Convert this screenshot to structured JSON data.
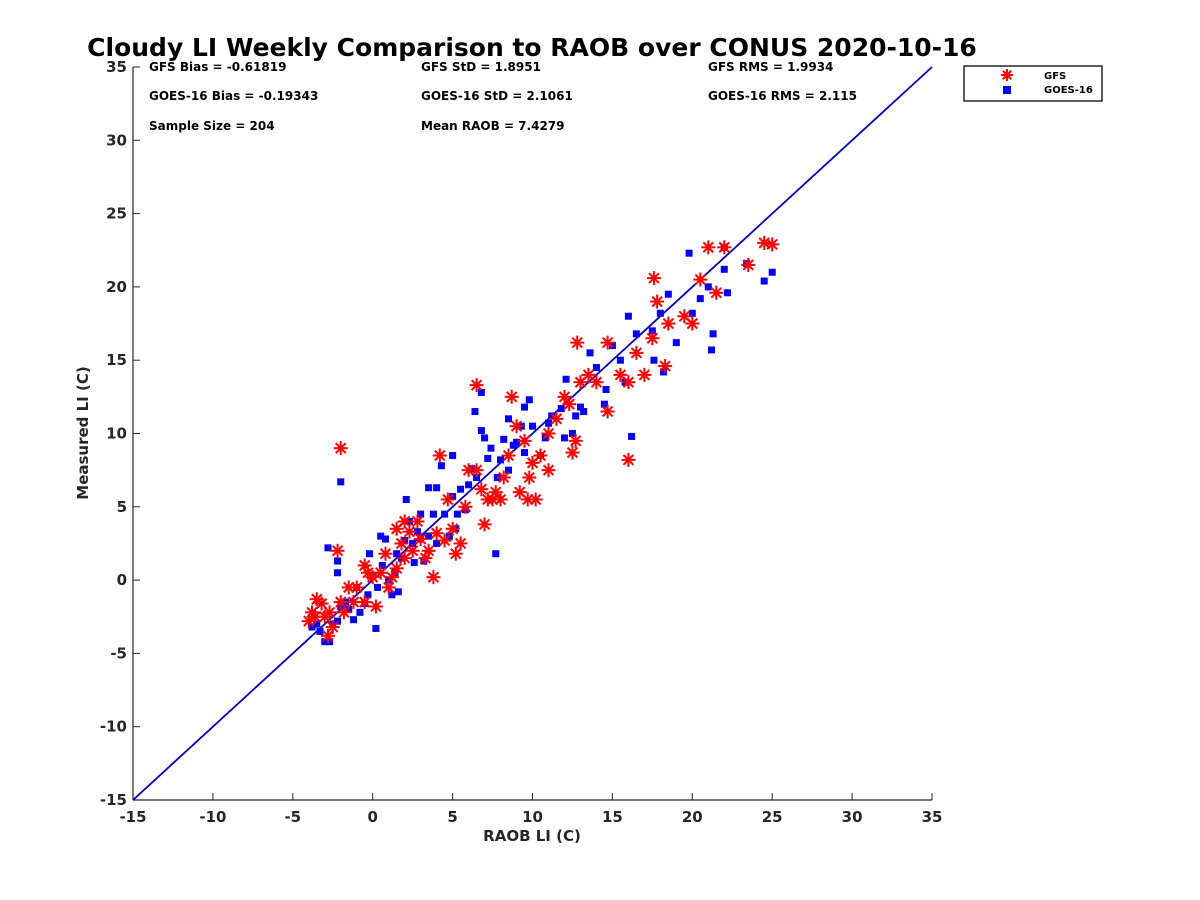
{
  "chart_data": {
    "type": "scatter",
    "title": "Cloudy LI Weekly Comparison to RAOB over CONUS 2020-10-16",
    "xlabel": "RAOB LI (C)",
    "ylabel": "Measured LI (C)",
    "xlim": [
      -15,
      35
    ],
    "ylim": [
      -15,
      35
    ],
    "xticks": [
      "-15",
      "-10",
      "-5",
      "0",
      "5",
      "10",
      "15",
      "20",
      "25",
      "30",
      "35"
    ],
    "yticks": [
      "-15",
      "-10",
      "-5",
      "0",
      "5",
      "10",
      "15",
      "20",
      "25",
      "30",
      "35"
    ],
    "grid": false,
    "legend_position": "outside top-right",
    "stats": [
      "GFS Bias = -0.61819",
      "GFS StD = 1.8951",
      "GFS RMS = 1.9934",
      "GOES-16 Bias = -0.19343",
      "GOES-16 StD = 2.1061",
      "GOES-16 RMS = 2.115",
      "Sample Size = 204",
      "Mean RAOB = 7.4279"
    ],
    "reference_line": {
      "from": [
        -15,
        -15
      ],
      "to": [
        35,
        35
      ],
      "color": "#0000cc"
    },
    "series": [
      {
        "name": "GFS",
        "marker": "asterisk",
        "color": "#ff0000",
        "points": [
          [
            -2,
            9
          ],
          [
            -2.2,
            2
          ],
          [
            6.5,
            13.3
          ],
          [
            17.6,
            20.6
          ],
          [
            16,
            8.2
          ],
          [
            24.5,
            23
          ],
          [
            25,
            22.9
          ],
          [
            22,
            22.7
          ],
          [
            21,
            22.7
          ],
          [
            23.5,
            21.5
          ],
          [
            21.5,
            19.6
          ],
          [
            20.5,
            20.5
          ],
          [
            20,
            17.5
          ],
          [
            19.5,
            18
          ],
          [
            18.5,
            17.5
          ],
          [
            17.8,
            19
          ],
          [
            18.3,
            14.6
          ],
          [
            17.5,
            16.5
          ],
          [
            17,
            14
          ],
          [
            16.5,
            15.5
          ],
          [
            16,
            13.5
          ],
          [
            15.5,
            14
          ],
          [
            14.7,
            16.2
          ],
          [
            14.7,
            11.5
          ],
          [
            14,
            13.5
          ],
          [
            13.5,
            14
          ],
          [
            13,
            13.5
          ],
          [
            12.8,
            16.2
          ],
          [
            12.7,
            9.5
          ],
          [
            12.5,
            8.7
          ],
          [
            12.3,
            12
          ],
          [
            12,
            12.5
          ],
          [
            11.5,
            11
          ],
          [
            11,
            10
          ],
          [
            11,
            7.5
          ],
          [
            10.5,
            8.5
          ],
          [
            10,
            8
          ],
          [
            10.2,
            5.5
          ],
          [
            9.7,
            5.5
          ],
          [
            9.8,
            7
          ],
          [
            9.5,
            9.5
          ],
          [
            9.2,
            6
          ],
          [
            9,
            10.5
          ],
          [
            8.5,
            8.5
          ],
          [
            8.7,
            12.5
          ],
          [
            8.2,
            7
          ],
          [
            8,
            5.5
          ],
          [
            7.7,
            6
          ],
          [
            7.5,
            5.5
          ],
          [
            7.2,
            5.5
          ],
          [
            7,
            3.8
          ],
          [
            6.8,
            6.2
          ],
          [
            6.5,
            7.5
          ],
          [
            6,
            7.5
          ],
          [
            5.8,
            5
          ],
          [
            5.5,
            2.5
          ],
          [
            5.2,
            1.8
          ],
          [
            5,
            3.5
          ],
          [
            4.7,
            5.5
          ],
          [
            4.2,
            8.5
          ],
          [
            4.5,
            2.7
          ],
          [
            4,
            3.2
          ],
          [
            3.8,
            0.2
          ],
          [
            3.5,
            2
          ],
          [
            3.3,
            1.5
          ],
          [
            3,
            2.8
          ],
          [
            2.8,
            4
          ],
          [
            2.5,
            2
          ],
          [
            2.3,
            3.3
          ],
          [
            2,
            1.5
          ],
          [
            2,
            4
          ],
          [
            1.8,
            2.5
          ],
          [
            1.5,
            0.8
          ],
          [
            1.5,
            3.5
          ],
          [
            1.2,
            0.2
          ],
          [
            1,
            -0.5
          ],
          [
            0.8,
            1.8
          ],
          [
            0.5,
            0.5
          ],
          [
            0.2,
            -1.8
          ],
          [
            0,
            0.2
          ],
          [
            -0.3,
            0.5
          ],
          [
            -0.5,
            -1.5
          ],
          [
            -0.5,
            1
          ],
          [
            -1,
            -0.5
          ],
          [
            -1.2,
            -1.5
          ],
          [
            -1.5,
            -0.5
          ],
          [
            -1.8,
            -2.2
          ],
          [
            -2,
            -1.5
          ],
          [
            -2.5,
            -3.2
          ],
          [
            -2.8,
            -3.8
          ],
          [
            -3,
            -2.5
          ],
          [
            -3.2,
            -1.6
          ],
          [
            -3.5,
            -1.3
          ],
          [
            -3.8,
            -2.2
          ],
          [
            -4,
            -2.8
          ],
          [
            -2.7,
            -2.2
          ],
          [
            -3.6,
            -2.5
          ]
        ]
      },
      {
        "name": "GOES-16",
        "marker": "square",
        "color": "#0000ff",
        "points": [
          [
            -2,
            6.7
          ],
          [
            -2.8,
            2.2
          ],
          [
            -2.2,
            1.3
          ],
          [
            -2.2,
            0.5
          ],
          [
            6.8,
            12.8
          ],
          [
            6.4,
            11.5
          ],
          [
            21.2,
            15.7
          ],
          [
            16.2,
            9.8
          ],
          [
            25,
            21
          ],
          [
            24.5,
            20.4
          ],
          [
            23.4,
            21.6
          ],
          [
            22,
            22.7
          ],
          [
            22,
            21.2
          ],
          [
            22.2,
            19.6
          ],
          [
            21.3,
            16.8
          ],
          [
            21,
            20
          ],
          [
            20.5,
            19.2
          ],
          [
            19.8,
            22.3
          ],
          [
            20,
            18.2
          ],
          [
            19,
            16.2
          ],
          [
            18.5,
            19.5
          ],
          [
            18.2,
            14.2
          ],
          [
            18,
            18.2
          ],
          [
            17.5,
            17
          ],
          [
            17.6,
            15
          ],
          [
            16.5,
            16.8
          ],
          [
            16,
            18
          ],
          [
            15.8,
            13.5
          ],
          [
            15.5,
            15
          ],
          [
            15,
            16
          ],
          [
            14.6,
            13
          ],
          [
            14.5,
            12
          ],
          [
            14,
            14.5
          ],
          [
            13.6,
            15.5
          ],
          [
            13.2,
            11.5
          ],
          [
            13,
            11.8
          ],
          [
            12.7,
            11.2
          ],
          [
            12.1,
            13.7
          ],
          [
            12.5,
            10
          ],
          [
            11.8,
            11.7
          ],
          [
            12,
            9.7
          ],
          [
            11.2,
            11.2
          ],
          [
            11,
            10.7
          ],
          [
            10.8,
            9.7
          ],
          [
            10.5,
            8.5
          ],
          [
            10,
            10.5
          ],
          [
            9.8,
            12.3
          ],
          [
            9.5,
            11.8
          ],
          [
            9.3,
            10.5
          ],
          [
            9.5,
            8.7
          ],
          [
            9,
            9.4
          ],
          [
            8.8,
            9.2
          ],
          [
            8.5,
            11
          ],
          [
            8.5,
            7.5
          ],
          [
            8.2,
            9.6
          ],
          [
            8,
            8.2
          ],
          [
            7.8,
            7
          ],
          [
            7.7,
            1.8
          ],
          [
            7.4,
            9
          ],
          [
            7.2,
            8.3
          ],
          [
            7,
            9.7
          ],
          [
            6.8,
            10.2
          ],
          [
            6.5,
            7
          ],
          [
            6.2,
            7.6
          ],
          [
            6,
            6.5
          ],
          [
            5.8,
            4.8
          ],
          [
            5.5,
            6.2
          ],
          [
            5.3,
            4.5
          ],
          [
            5.2,
            3.5
          ],
          [
            5,
            8.5
          ],
          [
            5,
            5.7
          ],
          [
            4.8,
            3
          ],
          [
            4.5,
            4.5
          ],
          [
            4.3,
            7.8
          ],
          [
            4,
            6.3
          ],
          [
            4,
            2.5
          ],
          [
            3.8,
            4.5
          ],
          [
            3.5,
            6.3
          ],
          [
            3.5,
            3
          ],
          [
            3.2,
            1.3
          ],
          [
            3,
            2.8
          ],
          [
            3,
            4.5
          ],
          [
            2.8,
            3.3
          ],
          [
            2.6,
            1.2
          ],
          [
            2.5,
            2.5
          ],
          [
            2.3,
            4
          ],
          [
            2.1,
            5.5
          ],
          [
            2,
            2.7
          ],
          [
            1.8,
            1.5
          ],
          [
            1.6,
            -0.8
          ],
          [
            1.5,
            1.8
          ],
          [
            1.4,
            0.5
          ],
          [
            1.2,
            -1
          ],
          [
            1,
            0
          ],
          [
            0.8,
            2.8
          ],
          [
            0.6,
            1
          ],
          [
            0.5,
            3
          ],
          [
            0.3,
            -0.5
          ],
          [
            0.2,
            -3.3
          ],
          [
            0,
            0.3
          ],
          [
            -0.2,
            1.8
          ],
          [
            -0.3,
            -1
          ],
          [
            -0.5,
            -1.6
          ],
          [
            -0.8,
            -2.2
          ],
          [
            -1,
            -0.5
          ],
          [
            -1.2,
            -2.7
          ],
          [
            -1.5,
            -2
          ],
          [
            -1.7,
            -1.5
          ],
          [
            -2,
            -1.8
          ],
          [
            -2.2,
            -2.8
          ],
          [
            -2.5,
            -3
          ],
          [
            -2.7,
            -4.2
          ],
          [
            -3,
            -4.2
          ],
          [
            -3.3,
            -3.5
          ],
          [
            -3.5,
            -3
          ],
          [
            -3.8,
            -3.2
          ]
        ]
      }
    ]
  }
}
